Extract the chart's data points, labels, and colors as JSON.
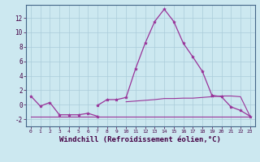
{
  "background_color": "#cce8f0",
  "grid_color": "#aaccda",
  "line_color": "#993399",
  "xlabel": "Windchill (Refroidissement éolien,°C)",
  "xlabel_fontsize": 6.5,
  "ylabel_ticks": [
    -2,
    0,
    2,
    4,
    6,
    8,
    10,
    12
  ],
  "xlim": [
    -0.5,
    23.5
  ],
  "ylim": [
    -3.0,
    13.8
  ],
  "x": [
    0,
    1,
    2,
    3,
    4,
    5,
    6,
    7,
    8,
    9,
    10,
    11,
    12,
    13,
    14,
    15,
    16,
    17,
    18,
    19,
    20,
    21,
    22,
    23
  ],
  "line1": [
    1.2,
    -0.2,
    0.3,
    -1.4,
    -1.4,
    -1.4,
    -1.2,
    -1.6,
    null,
    null,
    null,
    null,
    null,
    null,
    null,
    null,
    null,
    null,
    null,
    null,
    null,
    null,
    null,
    null
  ],
  "line2_upper": [
    null,
    null,
    null,
    null,
    null,
    null,
    null,
    null,
    null,
    null,
    null,
    null,
    null,
    null,
    null,
    null,
    null,
    null,
    null,
    1.3,
    1.1,
    -0.3,
    -0.8,
    -1.6
  ],
  "line2": [
    null,
    null,
    null,
    null,
    null,
    null,
    null,
    -0.1,
    0.7,
    0.7,
    1.0,
    5.0,
    8.5,
    11.5,
    13.2,
    11.5,
    8.5,
    6.6,
    4.6,
    1.3,
    null,
    null,
    null,
    null
  ],
  "line3": [
    null,
    null,
    null,
    null,
    null,
    null,
    null,
    null,
    null,
    null,
    0.4,
    0.5,
    0.6,
    0.7,
    0.85,
    0.85,
    0.9,
    0.9,
    1.0,
    1.1,
    1.2,
    1.2,
    1.1,
    -1.6
  ],
  "line4_flat": [
    -1.6,
    -1.6,
    -1.6,
    -1.6,
    -1.6,
    -1.6,
    -1.6,
    -1.6,
    -1.6,
    -1.6,
    -1.6,
    -1.6,
    -1.6,
    -1.6,
    -1.6,
    -1.6,
    -1.6,
    -1.6,
    -1.6,
    -1.6,
    -1.6,
    -1.6,
    -1.6,
    -1.6
  ],
  "xtick_labels": [
    "0",
    "1",
    "2",
    "3",
    "4",
    "5",
    "6",
    "7",
    "8",
    "9",
    "10",
    "11",
    "12",
    "13",
    "14",
    "15",
    "16",
    "17",
    "18",
    "19",
    "20",
    "21",
    "22",
    "23"
  ]
}
